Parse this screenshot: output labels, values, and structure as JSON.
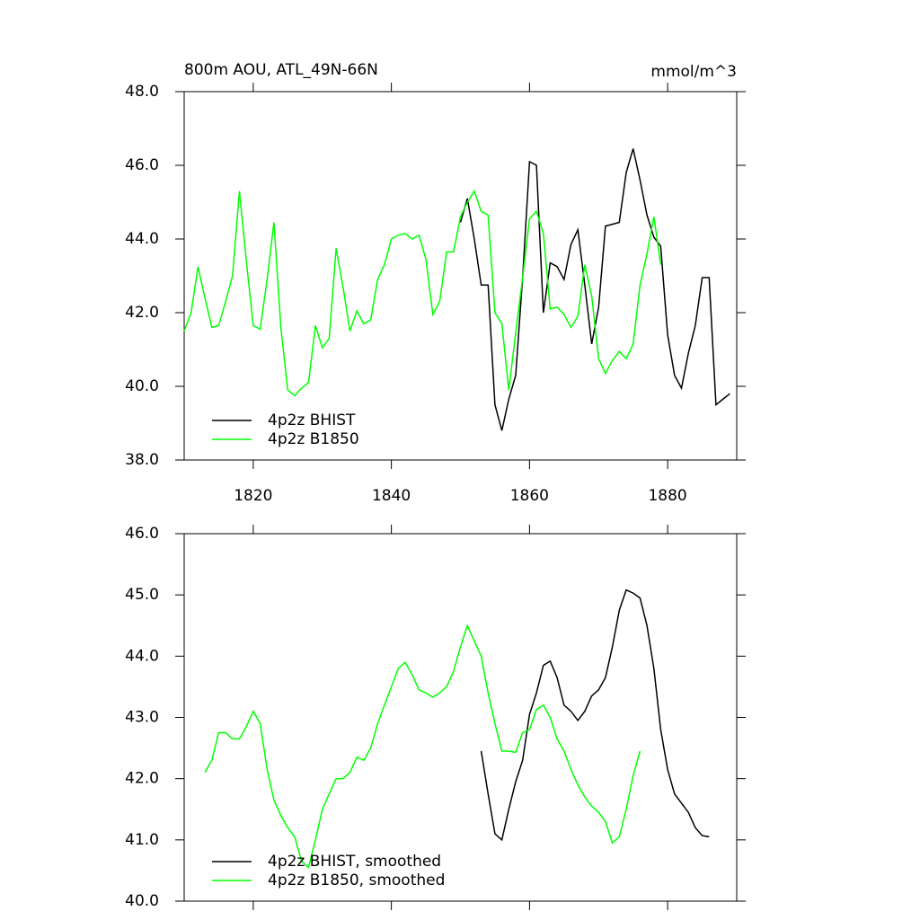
{
  "chart_data": [
    {
      "type": "line",
      "title": "800m AOU, ATL_49N-66N",
      "subtitle": "mmol/m^3",
      "xlim": [
        1810,
        1890
      ],
      "xticks": [
        1820,
        1840,
        1860,
        1880
      ],
      "xtick_labels": true,
      "ylim": [
        38,
        48
      ],
      "yticks": [
        {
          "value": 38,
          "label": "38.0"
        },
        {
          "value": 40,
          "label": "40.0"
        },
        {
          "value": 42,
          "label": "42.0"
        },
        {
          "value": 44,
          "label": "44.0"
        },
        {
          "value": 46,
          "label": "46.0"
        },
        {
          "value": 48,
          "label": "48.0"
        }
      ],
      "legend": "lower left",
      "grid": false,
      "series": [
        {
          "name": "4p2z BHIST",
          "color": "#000000",
          "x": [
            1850,
            1851,
            1852,
            1853,
            1854,
            1855,
            1856,
            1857,
            1858,
            1859,
            1860,
            1861,
            1862,
            1863,
            1864,
            1865,
            1866,
            1867,
            1868,
            1869,
            1870,
            1871,
            1872,
            1873,
            1874,
            1875,
            1876,
            1877,
            1878,
            1879,
            1880,
            1881,
            1882,
            1883,
            1884,
            1885,
            1886,
            1887,
            1888,
            1889
          ],
          "values": [
            44.45,
            45.1,
            44.0,
            42.75,
            42.75,
            39.5,
            38.8,
            39.65,
            40.3,
            42.95,
            46.1,
            46.0,
            42.0,
            43.35,
            43.25,
            42.9,
            43.85,
            44.25,
            42.75,
            41.15,
            42.15,
            44.35,
            44.4,
            44.45,
            45.8,
            46.45,
            45.6,
            44.65,
            44.05,
            43.8,
            41.4,
            40.3,
            39.95,
            40.9,
            41.65,
            42.95,
            42.95,
            39.5,
            39.65,
            39.8
          ]
        },
        {
          "name": "4p2z B1850",
          "color": "#00ff00",
          "x": [
            1810,
            1811,
            1812,
            1813,
            1814,
            1815,
            1816,
            1817,
            1818,
            1819,
            1820,
            1821,
            1822,
            1823,
            1824,
            1825,
            1826,
            1827,
            1828,
            1829,
            1830,
            1831,
            1832,
            1833,
            1834,
            1835,
            1836,
            1837,
            1838,
            1839,
            1840,
            1841,
            1842,
            1843,
            1844,
            1845,
            1846,
            1847,
            1848,
            1849,
            1850,
            1851,
            1852,
            1853,
            1854,
            1855,
            1856,
            1857,
            1858,
            1859,
            1860,
            1861,
            1862,
            1863,
            1864,
            1865,
            1866,
            1867,
            1868,
            1869,
            1870,
            1871,
            1872,
            1873,
            1874,
            1875,
            1876,
            1877,
            1878,
            1879
          ],
          "values": [
            41.5,
            42.0,
            43.25,
            42.4,
            41.6,
            41.65,
            42.3,
            43.0,
            45.3,
            43.4,
            41.65,
            41.55,
            42.9,
            44.45,
            41.6,
            39.9,
            39.75,
            39.95,
            40.1,
            41.65,
            41.05,
            41.3,
            43.75,
            42.7,
            41.5,
            42.05,
            41.7,
            41.8,
            42.9,
            43.3,
            44.0,
            44.1,
            44.15,
            44.0,
            44.1,
            43.45,
            41.95,
            42.3,
            43.65,
            43.65,
            44.6,
            45.0,
            45.3,
            44.75,
            44.65,
            42.0,
            41.7,
            39.9,
            41.45,
            42.95,
            44.55,
            44.75,
            44.15,
            42.1,
            42.15,
            41.95,
            41.6,
            41.9,
            43.3,
            42.45,
            40.75,
            40.35,
            40.7,
            40.95,
            40.75,
            41.15,
            42.75,
            43.6,
            44.6,
            43.3
          ]
        }
      ]
    },
    {
      "type": "line",
      "xlim": [
        1810,
        1890
      ],
      "xticks": [
        1820,
        1840,
        1860,
        1880
      ],
      "xtick_labels": false,
      "ylim": [
        40,
        46
      ],
      "yticks": [
        {
          "value": 40,
          "label": "40.0"
        },
        {
          "value": 41,
          "label": "41.0"
        },
        {
          "value": 42,
          "label": "42.0"
        },
        {
          "value": 43,
          "label": "43.0"
        },
        {
          "value": 44,
          "label": "44.0"
        },
        {
          "value": 45,
          "label": "45.0"
        },
        {
          "value": 46,
          "label": "46.0"
        }
      ],
      "legend": "lower left",
      "grid": false,
      "series": [
        {
          "name": "4p2z BHIST, smoothed",
          "color": "#000000",
          "x": [
            1853,
            1854,
            1855,
            1856,
            1857,
            1858,
            1859,
            1860,
            1861,
            1862,
            1863,
            1864,
            1865,
            1866,
            1867,
            1868,
            1869,
            1870,
            1871,
            1872,
            1873,
            1874,
            1875,
            1876,
            1877,
            1878,
            1879,
            1880,
            1881,
            1882,
            1883,
            1884,
            1885,
            1886
          ],
          "values": [
            42.45,
            41.75,
            41.1,
            41.0,
            41.5,
            41.95,
            42.3,
            43.05,
            43.4,
            43.85,
            43.92,
            43.65,
            43.2,
            43.1,
            42.95,
            43.1,
            43.35,
            43.45,
            43.65,
            44.15,
            44.75,
            45.08,
            45.03,
            44.95,
            44.5,
            43.8,
            42.8,
            42.15,
            41.75,
            41.6,
            41.45,
            41.2,
            41.07,
            41.05
          ]
        },
        {
          "name": "4p2z B1850, smoothed",
          "color": "#00ff00",
          "x": [
            1813,
            1814,
            1815,
            1816,
            1817,
            1818,
            1819,
            1820,
            1821,
            1822,
            1823,
            1824,
            1825,
            1826,
            1827,
            1828,
            1829,
            1830,
            1831,
            1832,
            1833,
            1834,
            1835,
            1836,
            1837,
            1838,
            1839,
            1840,
            1841,
            1842,
            1843,
            1844,
            1845,
            1846,
            1847,
            1848,
            1849,
            1850,
            1851,
            1852,
            1853,
            1854,
            1855,
            1856,
            1857,
            1858,
            1859,
            1860,
            1861,
            1862,
            1863,
            1864,
            1865,
            1866,
            1867,
            1868,
            1869,
            1870,
            1871,
            1872,
            1873,
            1874,
            1875,
            1876
          ],
          "values": [
            42.1,
            42.3,
            42.75,
            42.75,
            42.65,
            42.65,
            42.85,
            43.1,
            42.9,
            42.15,
            41.65,
            41.4,
            41.2,
            41.05,
            40.65,
            40.55,
            41.0,
            41.5,
            41.75,
            42.0,
            42.0,
            42.1,
            42.35,
            42.3,
            42.5,
            42.9,
            43.2,
            43.5,
            43.8,
            43.9,
            43.7,
            43.45,
            43.4,
            43.33,
            43.4,
            43.5,
            43.75,
            44.15,
            44.5,
            44.25,
            44.0,
            43.4,
            42.9,
            42.45,
            42.45,
            42.43,
            42.75,
            42.8,
            43.13,
            43.2,
            43.0,
            42.65,
            42.45,
            42.15,
            41.9,
            41.7,
            41.55,
            41.45,
            41.3,
            40.95,
            41.05,
            41.5,
            42.05,
            42.45
          ]
        }
      ]
    }
  ]
}
